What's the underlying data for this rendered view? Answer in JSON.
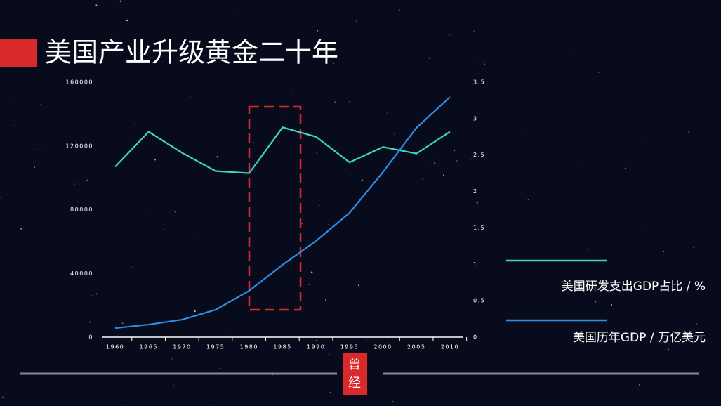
{
  "header": {
    "title": "美国产业升级黄金二十年"
  },
  "logo": [
    "曾",
    "经"
  ],
  "chart_data": {
    "type": "line",
    "x": [
      1960,
      1965,
      1970,
      1975,
      1980,
      1985,
      1990,
      1995,
      2000,
      2005,
      2010
    ],
    "xlim": [
      1958,
      2012
    ],
    "xticks": [
      1960,
      1965,
      1970,
      1975,
      1980,
      1985,
      1990,
      1995,
      2000,
      2005,
      2010
    ],
    "ylim": [
      0,
      160000
    ],
    "yticks": [
      0,
      40000,
      80000,
      120000,
      160000
    ],
    "y2lim": [
      0,
      3.5
    ],
    "y2ticks": [
      0,
      0.5,
      1,
      1.5,
      2,
      2.5,
      3,
      3.5
    ],
    "legend": "right",
    "series": [
      {
        "name": "美国研发支出GDP占比 / %",
        "color": "#3dd6c4",
        "axis": "y2",
        "values": [
          2.34,
          2.82,
          2.53,
          2.28,
          2.25,
          2.88,
          2.75,
          2.4,
          2.61,
          2.52,
          2.82
        ]
      },
      {
        "name": "美国历年GDP / 万亿美元",
        "color": "#2f8fe6",
        "values": [
          5700,
          7900,
          11000,
          17200,
          29100,
          45400,
          60400,
          78000,
          103600,
          131400,
          150700
        ]
      }
    ]
  }
}
